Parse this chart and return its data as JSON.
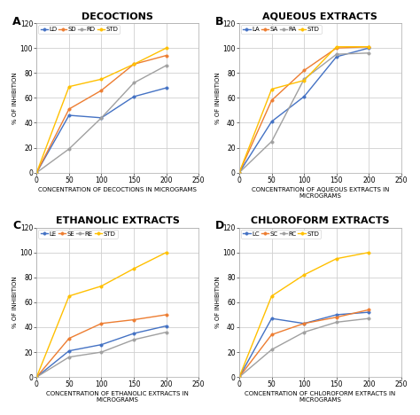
{
  "title_A": "DECOCTIONS",
  "title_B": "AQUEOUS EXTRACTS",
  "title_C": "ETHANOLIC EXTRACTS",
  "title_D": "CHLOROFORM EXTRACTS",
  "xlabel_A": "CONCENTRATION OF DECOCTIONS IN MICROGRAMS",
  "xlabel_B": "CONCENTRATION OF AQUEOUS EXTRACTS IN\nMICROGRAMS",
  "xlabel_C": "CONCENTRATION OF ETHANOLIC EXTRACTS IN\nMICROGRAMS",
  "xlabel_D": "CONCENTRATION OF CHLOROFORM EXTRACTS IN\nMICROGRAMS",
  "ylabel": "% OF INHIBITION",
  "x": [
    0,
    50,
    100,
    150,
    200
  ],
  "A": {
    "LD": [
      0,
      46,
      44,
      61,
      68
    ],
    "SD": [
      0,
      51,
      66,
      87,
      94
    ],
    "RD": [
      0,
      19,
      44,
      72,
      86
    ],
    "STD": [
      0,
      69,
      75,
      87,
      100
    ]
  },
  "B": {
    "LA": [
      0,
      41,
      61,
      93,
      100
    ],
    "SA": [
      0,
      58,
      82,
      100,
      101
    ],
    "RA": [
      0,
      25,
      75,
      95,
      96
    ],
    "STD": [
      0,
      67,
      74,
      101,
      101
    ]
  },
  "C": {
    "LE": [
      0,
      21,
      26,
      35,
      41
    ],
    "SE": [
      0,
      31,
      43,
      46,
      50
    ],
    "RE": [
      0,
      16,
      20,
      30,
      36
    ],
    "STD": [
      0,
      65,
      73,
      87,
      100
    ]
  },
  "D": {
    "LC": [
      0,
      47,
      43,
      50,
      52
    ],
    "SC": [
      0,
      34,
      43,
      48,
      54
    ],
    "RC": [
      0,
      22,
      36,
      44,
      47
    ],
    "STD": [
      0,
      65,
      82,
      95,
      100
    ]
  },
  "color_L": "#4472c4",
  "color_S": "#ed7d31",
  "color_R": "#a0a0a0",
  "color_STD": "#ffc000",
  "bg_color": "#ffffff",
  "grid_color": "#d0d0d0",
  "title_fontsize": 8,
  "label_fontsize": 5,
  "tick_fontsize": 5.5,
  "legend_fontsize": 5,
  "panel_fontsize": 9,
  "linewidth": 1.0,
  "markersize": 2.5
}
